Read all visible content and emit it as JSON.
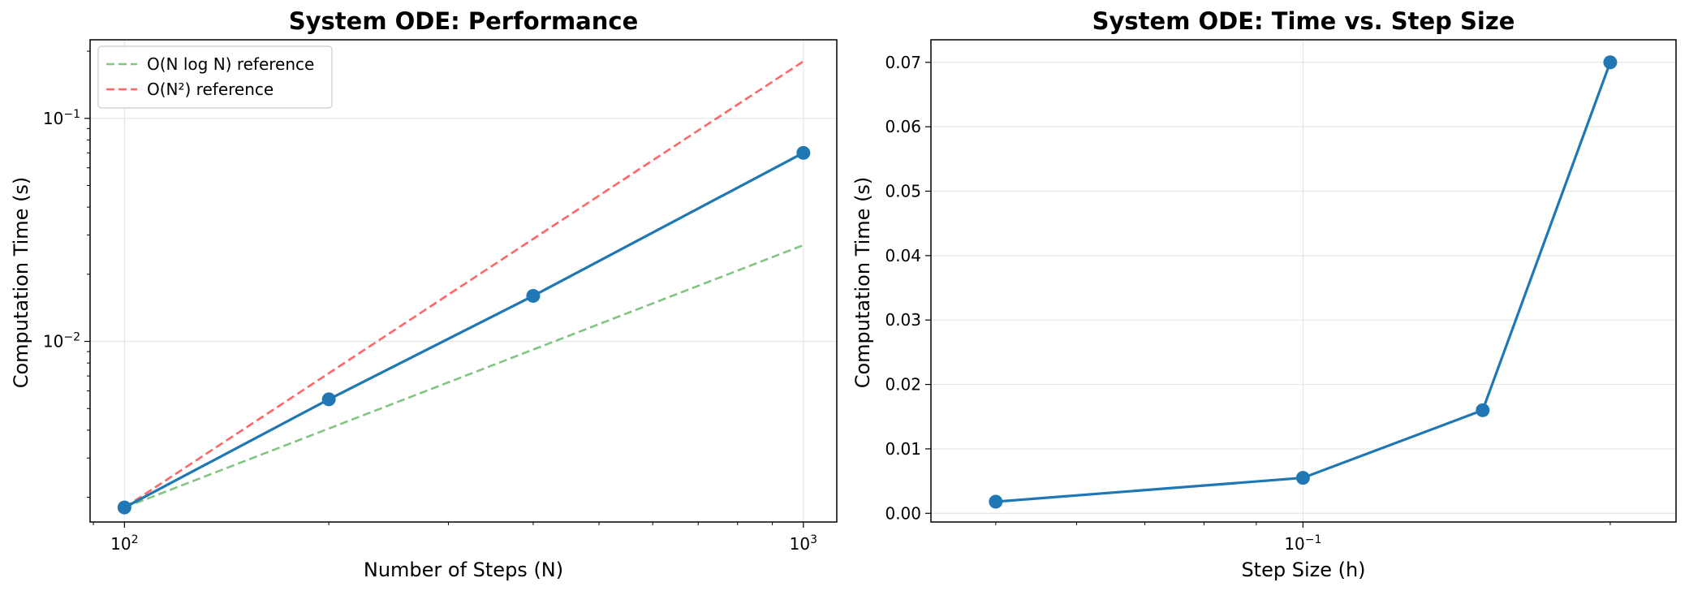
{
  "chart_data": [
    {
      "type": "line",
      "title": "System ODE: Performance",
      "xlabel": "Number of Steps (N)",
      "ylabel": "Computation Time (s)",
      "xscale": "log",
      "yscale": "log",
      "xlim": [
        89,
        1120
      ],
      "ylim": [
        0.00155,
        0.225
      ],
      "grid": true,
      "legend_position": "top-left",
      "x_ticks": [
        {
          "value": 100,
          "base": "10",
          "exp": "2"
        },
        {
          "value": 1000,
          "base": "10",
          "exp": "3"
        }
      ],
      "y_ticks": [
        {
          "value": 0.01,
          "base": "10",
          "exp": "−2"
        },
        {
          "value": 0.1,
          "base": "10",
          "exp": "−1"
        }
      ],
      "series": [
        {
          "x": [
            100,
            200,
            400,
            1000
          ],
          "y": [
            0.0018,
            0.0055,
            0.016,
            0.07
          ],
          "color": "#1f77b4",
          "style": "solid",
          "marker": "circle"
        },
        {
          "name": "O(N log N) reference",
          "x": [
            100,
            1000
          ],
          "y": [
            0.0018,
            0.027
          ],
          "color": "#2ca02c",
          "style": "dashed"
        },
        {
          "name": "O(N²) reference",
          "x": [
            100,
            1000
          ],
          "y": [
            0.0018,
            0.18
          ],
          "color": "#ff0000",
          "style": "dashed"
        }
      ]
    },
    {
      "type": "line",
      "title": "System ODE: Time vs. Step Size",
      "xlabel": "Step Size (h)",
      "ylabel": "Computation Time (s)",
      "xscale": "log",
      "yscale": "linear",
      "xlim": [
        0.0432,
        0.232
      ],
      "ylim": [
        -0.00135,
        0.0735
      ],
      "grid": true,
      "x_ticks": [
        {
          "value": 0.1,
          "base": "10",
          "exp": "−1"
        }
      ],
      "y_ticks": [
        {
          "value": 0,
          "label": "0.00"
        },
        {
          "value": 0.01,
          "label": "0.01"
        },
        {
          "value": 0.02,
          "label": "0.02"
        },
        {
          "value": 0.03,
          "label": "0.03"
        },
        {
          "value": 0.04,
          "label": "0.04"
        },
        {
          "value": 0.05,
          "label": "0.05"
        },
        {
          "value": 0.06,
          "label": "0.06"
        },
        {
          "value": 0.07,
          "label": "0.07"
        }
      ],
      "series": [
        {
          "x": [
            0.05,
            0.1,
            0.15,
            0.2
          ],
          "y": [
            0.0018,
            0.0055,
            0.016,
            0.07
          ],
          "color": "#1f77b4",
          "style": "solid",
          "marker": "circle"
        }
      ]
    }
  ]
}
